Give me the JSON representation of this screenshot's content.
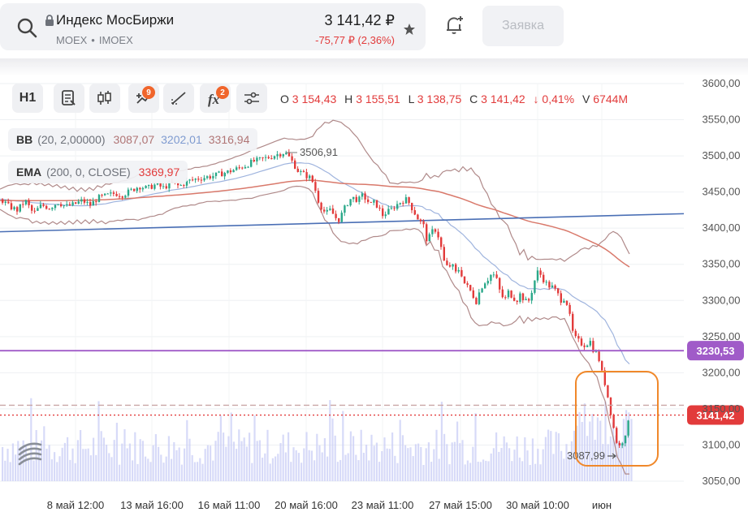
{
  "header": {
    "ticker_name": "Индекс МосБиржи",
    "exchange": "MOEX",
    "symbol": "IMOEX",
    "price": "3 141,42 ₽",
    "change": "-75,77 ₽ (2,36%)",
    "order_button": "Заявка"
  },
  "toolbar": {
    "interval": "H1",
    "indicators_badge": "9",
    "fx_badge": "2"
  },
  "ohlc": {
    "o_label": "O",
    "o": "3 154,43",
    "h_label": "H",
    "h": "3 155,51",
    "l_label": "L",
    "l": "3 138,75",
    "c_label": "C",
    "c": "3 141,42",
    "pct": "↓ 0,41%",
    "v_label": "V",
    "v": "6744M"
  },
  "indicators": {
    "bb": {
      "name": "BB",
      "params": "(20, 2,00000)",
      "lower": "3087,07",
      "mid": "3202,01",
      "upper": "3316,94"
    },
    "ema": {
      "name": "EMA",
      "params": "(200, 0, CLOSE)",
      "value": "3369,97"
    }
  },
  "annotations": {
    "high_marker": "3506,91",
    "low_marker": "3087,99"
  },
  "colors": {
    "up": "#2aa889",
    "down": "#e23b3b",
    "bb_band": "#b08a8a",
    "bb_mid": "#9fb4de",
    "ema": "#d9796b",
    "trend": "#4a6fb5",
    "level": "#a05bc8",
    "highlight": "#f0882a",
    "volume": "#c9cdf5"
  },
  "chart_data": {
    "type": "candlestick",
    "y_ticks": [
      "3600,00",
      "3550,00",
      "3500,00",
      "3450,00",
      "3400,00",
      "3350,00",
      "3300,00",
      "3250,00",
      "3200,00",
      "3150,00",
      "3100,00",
      "3050,00"
    ],
    "x_ticks": [
      "8 май 12:00",
      "13 май 16:00",
      "16 май 11:00",
      "20 май 16:00",
      "23 май 11:00",
      "27 май 15:00",
      "30 май 10:00",
      "июн"
    ],
    "ylim": [
      3050,
      3600
    ],
    "close_path": [
      [
        0,
        3440
      ],
      [
        10,
        3430
      ],
      [
        20,
        3425
      ],
      [
        30,
        3438
      ],
      [
        40,
        3420
      ],
      [
        50,
        3432
      ],
      [
        60,
        3428
      ],
      [
        70,
        3436
      ],
      [
        80,
        3430
      ],
      [
        90,
        3433
      ],
      [
        100,
        3438
      ],
      [
        110,
        3432
      ],
      [
        120,
        3442
      ],
      [
        130,
        3445
      ],
      [
        140,
        3448
      ],
      [
        150,
        3446
      ],
      [
        160,
        3452
      ],
      [
        170,
        3458
      ],
      [
        180,
        3455
      ],
      [
        190,
        3460
      ],
      [
        200,
        3456
      ],
      [
        210,
        3462
      ],
      [
        220,
        3458
      ],
      [
        230,
        3465
      ],
      [
        240,
        3468
      ],
      [
        250,
        3470
      ],
      [
        260,
        3472
      ],
      [
        270,
        3475
      ],
      [
        280,
        3478
      ],
      [
        290,
        3482
      ],
      [
        300,
        3486
      ],
      [
        310,
        3492
      ],
      [
        320,
        3495
      ],
      [
        330,
        3498
      ],
      [
        340,
        3502
      ],
      [
        350,
        3505
      ],
      [
        355,
        3498
      ],
      [
        360,
        3490
      ],
      [
        365,
        3480
      ],
      [
        372,
        3475
      ],
      [
        380,
        3470
      ],
      [
        385,
        3462
      ],
      [
        390,
        3440
      ],
      [
        395,
        3428
      ],
      [
        400,
        3420
      ],
      [
        405,
        3425
      ],
      [
        410,
        3418
      ],
      [
        415,
        3410
      ],
      [
        420,
        3420
      ],
      [
        425,
        3432
      ],
      [
        430,
        3440
      ],
      [
        435,
        3442
      ],
      [
        440,
        3438
      ],
      [
        445,
        3445
      ],
      [
        450,
        3440
      ],
      [
        455,
        3432
      ],
      [
        460,
        3436
      ],
      [
        465,
        3428
      ],
      [
        470,
        3418
      ],
      [
        475,
        3422
      ],
      [
        480,
        3425
      ],
      [
        485,
        3430
      ],
      [
        490,
        3435
      ],
      [
        495,
        3438
      ],
      [
        500,
        3440
      ],
      [
        505,
        3430
      ],
      [
        510,
        3420
      ],
      [
        515,
        3410
      ],
      [
        520,
        3405
      ],
      [
        525,
        3380
      ],
      [
        530,
        3395
      ],
      [
        535,
        3398
      ],
      [
        540,
        3385
      ],
      [
        545,
        3355
      ],
      [
        550,
        3345
      ],
      [
        555,
        3350
      ],
      [
        560,
        3338
      ],
      [
        565,
        3345
      ],
      [
        570,
        3325
      ],
      [
        575,
        3318
      ],
      [
        580,
        3310
      ],
      [
        585,
        3298
      ],
      [
        590,
        3315
      ],
      [
        595,
        3325
      ],
      [
        600,
        3330
      ],
      [
        605,
        3338
      ],
      [
        610,
        3330
      ],
      [
        615,
        3310
      ],
      [
        620,
        3300
      ],
      [
        625,
        3312
      ],
      [
        630,
        3305
      ],
      [
        635,
        3300
      ],
      [
        640,
        3310
      ],
      [
        645,
        3298
      ],
      [
        650,
        3300
      ],
      [
        655,
        3318
      ],
      [
        660,
        3340
      ],
      [
        665,
        3335
      ],
      [
        670,
        3325
      ],
      [
        675,
        3320
      ],
      [
        680,
        3318
      ],
      [
        685,
        3310
      ],
      [
        690,
        3300
      ],
      [
        695,
        3305
      ],
      [
        700,
        3280
      ],
      [
        705,
        3250
      ],
      [
        710,
        3245
      ],
      [
        715,
        3240
      ],
      [
        720,
        3238
      ],
      [
        725,
        3245
      ],
      [
        730,
        3230
      ],
      [
        735,
        3225
      ],
      [
        740,
        3200
      ],
      [
        745,
        3180
      ],
      [
        750,
        3150
      ],
      [
        755,
        3120
      ],
      [
        760,
        3095
      ],
      [
        765,
        3105
      ],
      [
        770,
        3120
      ],
      [
        775,
        3141
      ]
    ],
    "series": [
      {
        "name": "BB",
        "lower": "3087,07",
        "mid": "3202,01",
        "upper": "3316,94"
      },
      {
        "name": "EMA",
        "value": "3369,97"
      }
    ],
    "horizontal_levels": [
      {
        "label": "3230,53",
        "value": 3230.53,
        "style": "solid"
      },
      {
        "label": "3141,42",
        "value": 3141.42,
        "style": "dotted"
      },
      {
        "value": 3155,
        "style": "dashed"
      }
    ],
    "grid": true
  }
}
